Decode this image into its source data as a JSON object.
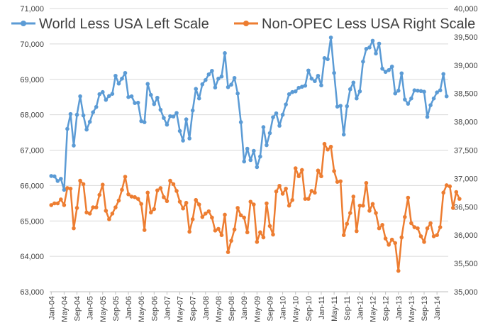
{
  "chart_data": {
    "type": "line",
    "title": "",
    "legend_placement": "top",
    "grid": {
      "horizontal": true,
      "vertical": false
    },
    "y_left": {
      "min": 63000,
      "max": 71000,
      "ticks": [
        "63,000",
        "64,000",
        "65,000",
        "66,000",
        "67,000",
        "68,000",
        "69,000",
        "70,000",
        "71,000"
      ]
    },
    "y_right": {
      "min": 35000,
      "max": 40000,
      "ticks": [
        "35,000",
        "35,500",
        "36,000",
        "36,500",
        "37,000",
        "37,500",
        "38,000",
        "38,500",
        "39,000",
        "39,500",
        "40,000"
      ]
    },
    "x_tick_labels": [
      "Jan-04",
      "May-04",
      "Sep-04",
      "Jan-05",
      "May-05",
      "Sep-05",
      "Jan-06",
      "May-06",
      "Sep-06",
      "Jan-07",
      "May-07",
      "Sep-07",
      "Jan-08",
      "May-08",
      "Sep-08",
      "Jan-09",
      "May-09",
      "Sep-09",
      "Jan-10",
      "May-10",
      "Sep-10",
      "Jan-11",
      "May-11",
      "Sep-11",
      "Jan-12",
      "May-12",
      "Sep-12",
      "Jan-13",
      "May-13",
      "Sep-13",
      "Jan-14"
    ],
    "x_start": "Jan-04",
    "series": [
      {
        "name": "World Less USA Left Scale",
        "axis": "left",
        "color": "#5B9BD5",
        "values": [
          66270,
          66260,
          66130,
          66190,
          65880,
          67600,
          68020,
          67130,
          68000,
          68520,
          67980,
          67580,
          67800,
          68070,
          68220,
          68580,
          68640,
          68420,
          68530,
          68590,
          69100,
          68880,
          69020,
          69180,
          68500,
          68520,
          68330,
          68340,
          67820,
          67790,
          68870,
          68560,
          68300,
          68480,
          68140,
          67910,
          67720,
          67960,
          67950,
          68050,
          67540,
          67270,
          67870,
          67330,
          68120,
          68730,
          68460,
          68860,
          68980,
          69140,
          69240,
          68770,
          69020,
          69080,
          69740,
          68780,
          68850,
          69040,
          68600,
          67790,
          66680,
          67040,
          66720,
          66980,
          66520,
          66820,
          67650,
          67140,
          67480,
          67930,
          68040,
          67690,
          68000,
          68290,
          68580,
          68640,
          68660,
          68760,
          68790,
          68820,
          69250,
          69020,
          68950,
          69100,
          68830,
          69600,
          69570,
          70180,
          69180,
          68230,
          68250,
          67440,
          68240,
          68720,
          68910,
          68460,
          68660,
          69500,
          69860,
          69900,
          70090,
          69730,
          70010,
          69300,
          69210,
          69260,
          69360,
          68600,
          68680,
          69170,
          68430,
          68310,
          68460,
          68690,
          68680,
          68670,
          68650,
          67940,
          68270,
          68460,
          68630,
          68690,
          69150,
          68520
        ]
      },
      {
        "name": "Non-OPEC Less USA Right Scale",
        "axis": "right",
        "color": "#ED7D31",
        "values": [
          36530,
          36560,
          36560,
          36630,
          36530,
          36830,
          36820,
          36120,
          36480,
          36960,
          36900,
          36400,
          36380,
          36490,
          36490,
          36710,
          36890,
          36430,
          36280,
          36380,
          36490,
          36610,
          36800,
          37030,
          36720,
          36680,
          36670,
          36640,
          36550,
          36090,
          36750,
          36400,
          36460,
          36790,
          36830,
          36670,
          36600,
          36960,
          36900,
          36780,
          36590,
          36470,
          36570,
          36060,
          36280,
          36620,
          36540,
          36320,
          36380,
          36420,
          36310,
          36080,
          36110,
          36000,
          36360,
          35700,
          35900,
          36100,
          36480,
          36350,
          36310,
          36050,
          36590,
          36540,
          35880,
          36050,
          35960,
          36560,
          36160,
          36010,
          36770,
          36870,
          36730,
          36820,
          36520,
          36620,
          37180,
          37040,
          37150,
          36640,
          36640,
          36780,
          36750,
          37140,
          37040,
          37610,
          37510,
          37560,
          37130,
          36940,
          36950,
          36000,
          36200,
          36390,
          36680,
          36070,
          36520,
          36520,
          36920,
          36430,
          36550,
          36390,
          36120,
          36180,
          35940,
          35830,
          35920,
          35860,
          35370,
          35960,
          36320,
          36660,
          36210,
          36140,
          36120,
          35980,
          35880,
          36120,
          36210,
          35980,
          36000,
          36140,
          36750,
          36880,
          36860,
          36480,
          36760,
          36640
        ]
      }
    ]
  }
}
